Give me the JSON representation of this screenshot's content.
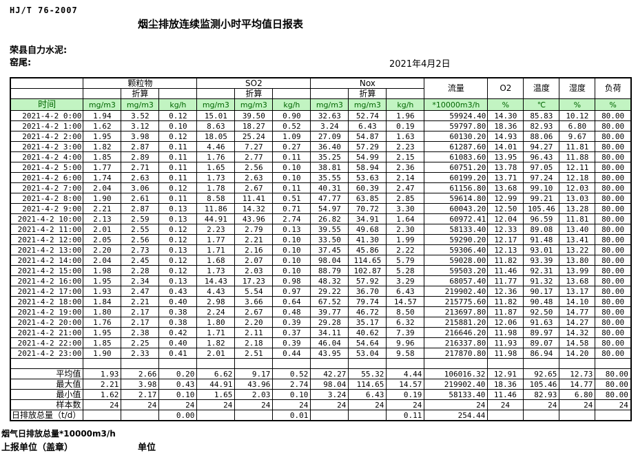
{
  "page": {
    "doc_code": "HJ/T  76-2007",
    "title": "烟尘排放连续监测小时平均值日报表",
    "company": "荣县自力水泥:",
    "station": "窑尾:",
    "date": "2021年4月2日",
    "footer_total_line": "烟气日排放总量*10000m3/h",
    "footer_report_unit": "上报单位（盖章）",
    "footer_unit": "单位"
  },
  "colors": {
    "header_green_bg": "#c2f4c2",
    "header_green_text": "#006600",
    "border": "#000000"
  },
  "table": {
    "corner_label": "时间",
    "groups": [
      {
        "label": "颗粒物",
        "sub_label": "折算"
      },
      {
        "label": "SO2",
        "sub_label": "折算"
      },
      {
        "label": "Nox",
        "sub_label": "折算"
      }
    ],
    "group_units": [
      "mg/m3",
      "mg/m3",
      "kg/h",
      "mg/m3",
      "mg/m3",
      "kg/h",
      "mg/m3",
      "mg/m3",
      "kg/h"
    ],
    "merged_headers": [
      {
        "label": "流量",
        "unit": "*10000m3/h"
      },
      {
        "label": "O2",
        "unit": "%"
      },
      {
        "label": "温度",
        "unit": "℃"
      },
      {
        "label": "湿度",
        "unit": "%"
      },
      {
        "label": "负荷",
        "unit": "%"
      }
    ],
    "rows": [
      [
        "2021-4-2 0:00",
        "1.94",
        "3.52",
        "0.12",
        "15.01",
        "39.50",
        "0.90",
        "32.63",
        "52.74",
        "1.96",
        "59924.40",
        "14.30",
        "85.83",
        "10.12",
        "80.00"
      ],
      [
        "2021-4-2 1:00",
        "1.62",
        "3.12",
        "0.10",
        "8.63",
        "18.27",
        "0.52",
        "3.24",
        "6.43",
        "0.19",
        "59797.80",
        "18.36",
        "82.93",
        "6.80",
        "80.00"
      ],
      [
        "2021-4-2 2:00",
        "1.95",
        "3.98",
        "0.12",
        "18.05",
        "25.24",
        "1.09",
        "27.09",
        "54.87",
        "1.63",
        "60130.20",
        "14.93",
        "88.06",
        "9.67",
        "80.00"
      ],
      [
        "2021-4-2 3:00",
        "1.82",
        "2.87",
        "0.11",
        "4.46",
        "7.27",
        "0.27",
        "36.40",
        "57.29",
        "2.23",
        "61287.60",
        "14.01",
        "94.27",
        "11.81",
        "80.00"
      ],
      [
        "2021-4-2 4:00",
        "1.85",
        "2.89",
        "0.11",
        "1.76",
        "2.77",
        "0.11",
        "35.25",
        "54.99",
        "2.15",
        "61083.60",
        "13.95",
        "96.43",
        "11.88",
        "80.00"
      ],
      [
        "2021-4-2 5:00",
        "1.77",
        "2.71",
        "0.11",
        "1.65",
        "2.56",
        "0.10",
        "38.81",
        "58.94",
        "2.36",
        "60751.20",
        "13.78",
        "97.05",
        "12.11",
        "80.00"
      ],
      [
        "2021-4-2 6:00",
        "1.74",
        "2.63",
        "0.11",
        "1.73",
        "2.63",
        "0.10",
        "35.55",
        "53.63",
        "2.14",
        "60199.20",
        "13.71",
        "97.24",
        "12.18",
        "80.00"
      ],
      [
        "2021-4-2 7:00",
        "2.04",
        "3.06",
        "0.12",
        "1.78",
        "2.67",
        "0.11",
        "40.31",
        "60.39",
        "2.47",
        "61156.80",
        "13.68",
        "99.10",
        "12.03",
        "80.00"
      ],
      [
        "2021-4-2 8:00",
        "1.90",
        "2.61",
        "0.11",
        "8.58",
        "11.41",
        "0.51",
        "47.77",
        "63.85",
        "2.85",
        "59614.80",
        "12.99",
        "99.21",
        "13.03",
        "80.00"
      ],
      [
        "2021-4-2 9:00",
        "2.21",
        "2.87",
        "0.13",
        "11.86",
        "14.32",
        "0.71",
        "54.97",
        "70.72",
        "3.30",
        "60043.20",
        "12.50",
        "105.46",
        "13.28",
        "80.00"
      ],
      [
        "2021-4-2 10:00",
        "2.13",
        "2.59",
        "0.13",
        "44.91",
        "43.96",
        "2.74",
        "26.82",
        "34.91",
        "1.64",
        "60972.41",
        "12.04",
        "96.59",
        "11.81",
        "80.00"
      ],
      [
        "2021-4-2 11:00",
        "2.01",
        "2.55",
        "0.12",
        "2.23",
        "2.79",
        "0.13",
        "39.55",
        "49.68",
        "2.30",
        "58133.40",
        "12.33",
        "89.08",
        "13.40",
        "80.00"
      ],
      [
        "2021-4-2 12:00",
        "2.05",
        "2.56",
        "0.12",
        "1.77",
        "2.21",
        "0.10",
        "33.50",
        "41.30",
        "1.99",
        "59290.20",
        "12.17",
        "91.48",
        "13.41",
        "80.00"
      ],
      [
        "2021-4-2 13:00",
        "2.20",
        "2.73",
        "0.13",
        "1.71",
        "2.16",
        "0.10",
        "37.45",
        "45.86",
        "2.22",
        "59306.40",
        "12.13",
        "93.01",
        "13.22",
        "80.00"
      ],
      [
        "2021-4-2 14:00",
        "2.04",
        "2.45",
        "0.12",
        "1.68",
        "2.07",
        "0.10",
        "98.04",
        "114.65",
        "5.79",
        "59028.00",
        "11.82",
        "93.39",
        "13.80",
        "80.00"
      ],
      [
        "2021-4-2 15:00",
        "1.98",
        "2.28",
        "0.12",
        "1.73",
        "2.03",
        "0.10",
        "88.79",
        "102.87",
        "5.28",
        "59503.20",
        "11.46",
        "92.31",
        "13.99",
        "80.00"
      ],
      [
        "2021-4-2 16:00",
        "1.95",
        "2.34",
        "0.13",
        "14.43",
        "17.23",
        "0.98",
        "48.32",
        "57.92",
        "3.29",
        "68057.40",
        "11.77",
        "91.32",
        "13.68",
        "80.00"
      ],
      [
        "2021-4-2 17:00",
        "1.93",
        "2.47",
        "0.43",
        "4.43",
        "5.54",
        "0.97",
        "29.22",
        "36.70",
        "6.43",
        "219902.40",
        "12.36",
        "90.17",
        "13.17",
        "80.00"
      ],
      [
        "2021-4-2 18:00",
        "1.84",
        "2.21",
        "0.40",
        "2.98",
        "3.66",
        "0.64",
        "67.52",
        "79.74",
        "14.57",
        "215775.60",
        "11.82",
        "90.48",
        "14.10",
        "80.00"
      ],
      [
        "2021-4-2 19:00",
        "1.80",
        "2.17",
        "0.38",
        "2.24",
        "2.67",
        "0.48",
        "39.77",
        "46.72",
        "8.50",
        "213697.80",
        "11.87",
        "92.50",
        "14.77",
        "80.00"
      ],
      [
        "2021-4-2 20:00",
        "1.76",
        "2.17",
        "0.38",
        "1.80",
        "2.20",
        "0.39",
        "29.28",
        "35.17",
        "6.32",
        "215881.20",
        "12.06",
        "91.63",
        "14.27",
        "80.00"
      ],
      [
        "2021-4-2 21:00",
        "1.95",
        "2.38",
        "0.42",
        "1.71",
        "2.11",
        "0.37",
        "34.11",
        "40.62",
        "7.39",
        "216646.20",
        "11.98",
        "89.97",
        "14.32",
        "80.00"
      ],
      [
        "2021-4-2 22:00",
        "1.85",
        "2.25",
        "0.40",
        "1.82",
        "2.18",
        "0.39",
        "46.04",
        "54.64",
        "9.96",
        "216337.80",
        "11.93",
        "89.07",
        "14.58",
        "80.00"
      ],
      [
        "2021-4-2 23:00",
        "1.90",
        "2.33",
        "0.41",
        "2.01",
        "2.51",
        "0.44",
        "43.95",
        "53.04",
        "9.58",
        "217870.80",
        "11.98",
        "86.94",
        "14.20",
        "80.00"
      ]
    ],
    "summary_rows": [
      {
        "label": "平均值",
        "label_align": "right",
        "values": [
          "1.93",
          "2.66",
          "0.20",
          "6.62",
          "9.17",
          "0.52",
          "42.27",
          "55.32",
          "4.44",
          "106016.32",
          "12.91",
          "92.65",
          "12.73",
          "80.00"
        ]
      },
      {
        "label": "最大值",
        "label_align": "right",
        "values": [
          "2.21",
          "3.98",
          "0.43",
          "44.91",
          "43.96",
          "2.74",
          "98.04",
          "114.65",
          "14.57",
          "219902.40",
          "18.36",
          "105.46",
          "14.77",
          "80.00"
        ]
      },
      {
        "label": "最小值",
        "label_align": "right",
        "values": [
          "1.62",
          "2.17",
          "0.10",
          "1.65",
          "2.03",
          "0.10",
          "3.24",
          "6.43",
          "0.19",
          "58133.40",
          "11.46",
          "82.93",
          "6.80",
          "80.00"
        ]
      },
      {
        "label": "样本数",
        "label_align": "right",
        "values": [
          "24",
          "24",
          "24",
          "24",
          "24",
          "24",
          "24",
          "24",
          "24",
          "24",
          "24",
          "24",
          "24",
          "24"
        ]
      },
      {
        "label": "日排放总量（t/d）",
        "label_align": "left",
        "values": [
          "",
          "",
          "0.00",
          "",
          "",
          "0.01",
          "",
          "",
          "0.11",
          "254.44",
          "",
          "",
          "",
          ""
        ]
      }
    ]
  }
}
